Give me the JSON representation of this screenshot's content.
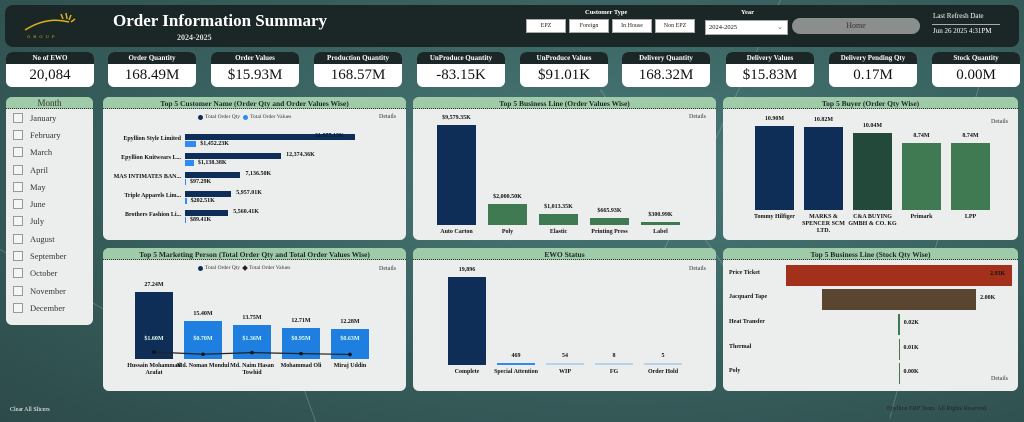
{
  "header": {
    "logo_text": "GROUP",
    "title": "Order Information Summary",
    "subtitle": "2024-2025",
    "customer_type_label": "Customer Type",
    "customer_types": [
      "EPZ",
      "Foreign",
      "In House",
      "Non EPZ"
    ],
    "year_label": "Year",
    "year_value": "2024-2025",
    "home_label": "Home",
    "last_refresh_label": "Last Refresh Date",
    "last_refresh_value": "Jun 26 2025 4:31PM"
  },
  "kpis": [
    {
      "label": "No of EWO",
      "value": "20,084"
    },
    {
      "label": "Order Quantity",
      "value": "168.49M"
    },
    {
      "label": "Order Values",
      "value": "$15.93M"
    },
    {
      "label": "Production Quantity",
      "value": "168.57M"
    },
    {
      "label": "UnProduce Quantity",
      "value": "-83.15K"
    },
    {
      "label": "UnProduce Values",
      "value": "$91.01K"
    },
    {
      "label": "Delivery Quantity",
      "value": "168.32M"
    },
    {
      "label": "Delivery Values",
      "value": "$15.83M"
    },
    {
      "label": "Delivery Pending Qty",
      "value": "0.17M"
    },
    {
      "label": "Stock Quantity",
      "value": "0.00M"
    }
  ],
  "month_slicer": {
    "title": "Month",
    "months": [
      "January",
      "February",
      "March",
      "April",
      "May",
      "June",
      "July",
      "August",
      "September",
      "October",
      "November",
      "December"
    ]
  },
  "footer": {
    "clear_label": "Clear All Slicers",
    "copyright": "Epyllion ERP Team. All Rights Reserved."
  },
  "details_label": "Details",
  "colors": {
    "navy": "#0e2d57",
    "blue": "#2e8bef",
    "green": "#3f7a52",
    "dark_green": "#23493a",
    "header_green": "#9fcba8",
    "red": "#a3301a",
    "brown": "#5a4630"
  },
  "chart_data": [
    {
      "id": "customer",
      "type": "bar",
      "orientation": "horizontal",
      "title": "Top 5 Customer Name (Order Qty and Order Values Wise)",
      "legend": [
        "Total Order Qty",
        "Total Order Values"
      ],
      "categories": [
        "Epyllion Style Limited",
        "Epyllion Knitwears L...",
        "MAS INTIMATES BAN...",
        "Triple Apparels Lim...",
        "Brothers Fashion Li..."
      ],
      "series": [
        {
          "name": "Total Order Qty",
          "values": [
            21877.19,
            12374.36,
            7136.5,
            5957.01,
            5560.41
          ],
          "labels": [
            "21,877.19K",
            "12,374.36K",
            "7,136.50K",
            "5,957.01K",
            "5,560.41K"
          ]
        },
        {
          "name": "Total Order Values",
          "values": [
            1452.23,
            1138.38,
            97.29,
            202.51,
            89.41
          ],
          "labels": [
            "$1,452.23K",
            "$1,138.38K",
            "$97.29K",
            "$202.51K",
            "$89.41K"
          ]
        }
      ]
    },
    {
      "id": "business_line",
      "type": "bar",
      "title": "Top 5 Business Line (Order Values Wise)",
      "categories": [
        "Auto Carton",
        "Poly",
        "Elastic",
        "Printing Press",
        "Label"
      ],
      "values": [
        9579.35,
        2000.5,
        1013.35,
        665.93,
        300.99
      ],
      "labels": [
        "$9,579.35K",
        "$2,000.50K",
        "$1,013.35K",
        "$665.93K",
        "$300.99K"
      ]
    },
    {
      "id": "buyer",
      "type": "bar",
      "title": "Top 5 Buyer (Order Qty Wise)",
      "categories": [
        "Tommy Hilfiger",
        "MARKS & SPENCER SCM LTD.",
        "C&A BUYING GMBH & CO. KG",
        "Primark",
        "LPP"
      ],
      "values": [
        10.9,
        10.82,
        10.04,
        8.74,
        8.74
      ],
      "labels": [
        "10.90M",
        "10.82M",
        "10.04M",
        "8.74M",
        "8.74M"
      ]
    },
    {
      "id": "marketing",
      "type": "bar",
      "title": "Top 5 Marketing Person (Total Order Qty and Total Order Values Wise)",
      "legend": [
        "Total Order Qty",
        "Total Order Values"
      ],
      "categories": [
        "Hussain Mohammad Arafat",
        "Md. Noman Mondul",
        "Md. Naim Hasan Towhid",
        "Mohammad Oli",
        "Miraj Uddin"
      ],
      "series": [
        {
          "name": "Total Order Qty",
          "values": [
            27.24,
            15.4,
            13.75,
            12.71,
            12.28
          ],
          "labels": [
            "27.24M",
            "15.40M",
            "13.75M",
            "12.71M",
            "12.28M"
          ]
        },
        {
          "name": "Total Order Values",
          "values": [
            1.6,
            0.7,
            1.36,
            0.95,
            0.63
          ],
          "labels": [
            "$1.60M",
            "$0.70M",
            "$1.36M",
            "$0.95M",
            "$0.63M"
          ]
        }
      ]
    },
    {
      "id": "ewo_status",
      "type": "bar",
      "title": "EWO Status",
      "categories": [
        "Complete",
        "Special Attention",
        "WIP",
        "FG",
        "Order Hold"
      ],
      "values": [
        19896,
        469,
        54,
        8,
        5
      ],
      "labels": [
        "19,896",
        "469",
        "54",
        "8",
        "5"
      ]
    },
    {
      "id": "stock",
      "type": "bar",
      "orientation": "horizontal-funnel",
      "title": "Top 5 Business Line (Stock Qty Wise)",
      "categories": [
        "Price Ticket",
        "Jacquard Tape",
        "Heat Transfer",
        "Thermal",
        "Poly"
      ],
      "values": [
        2.93,
        2.0,
        0.02,
        0.01,
        0.0
      ],
      "labels": [
        "2.93K",
        "2.00K",
        "0.02K",
        "0.01K",
        "0.00K"
      ]
    }
  ]
}
